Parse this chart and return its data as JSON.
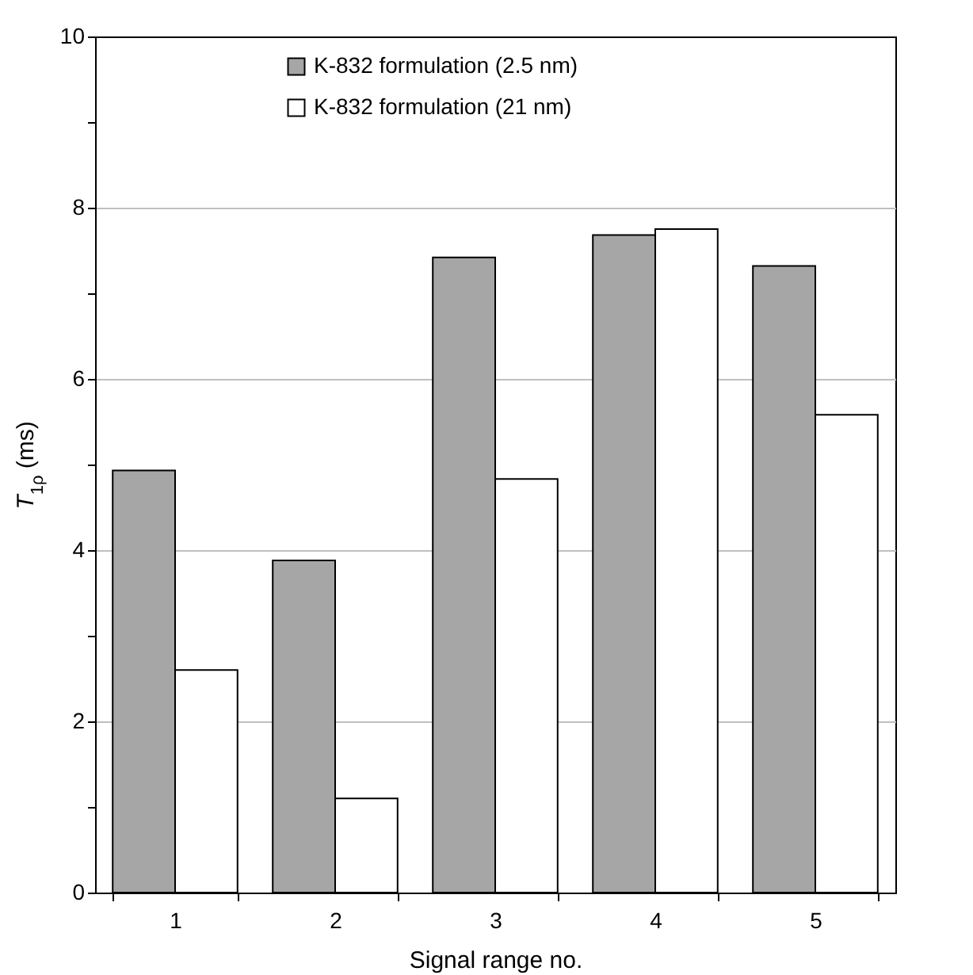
{
  "chart_data": {
    "type": "bar",
    "xlabel": "Signal range no.",
    "ylabel": "T$_{1ρ}$ (ms)",
    "categories": [
      "1",
      "2",
      "3",
      "4",
      "5"
    ],
    "series": [
      {
        "name": "K-832 formulation (2.5 nm)",
        "color": "#a6a6a6",
        "values": [
          4.93,
          3.88,
          7.42,
          7.68,
          7.32
        ]
      },
      {
        "name": "K-832 formulation (21 nm)",
        "color": "#ffffff",
        "values": [
          2.6,
          1.1,
          4.83,
          7.75,
          5.58
        ]
      }
    ],
    "ylim": [
      0,
      10
    ],
    "yticks": [
      0,
      {
        "value": 1,
        "label": null
      },
      2,
      {
        "value": 3,
        "label": null
      },
      4,
      {
        "value": 5,
        "label": null
      },
      6,
      {
        "value": 7,
        "label": null
      },
      8,
      {
        "value": 9,
        "label": null
      },
      10
    ],
    "grid": "y",
    "legend": "top"
  }
}
